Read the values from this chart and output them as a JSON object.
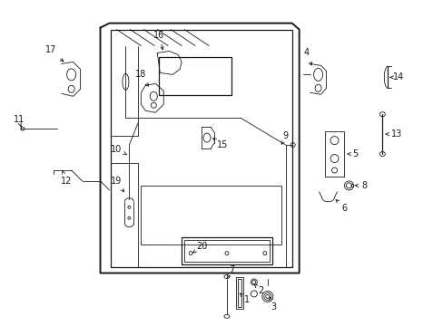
{
  "bg_color": "#ffffff",
  "line_color": "#1a1a1a",
  "figsize": [
    4.89,
    3.6
  ],
  "dpi": 100,
  "lw_main": 1.4,
  "lw_med": 0.9,
  "lw_thin": 0.6,
  "fs_label": 7.0
}
